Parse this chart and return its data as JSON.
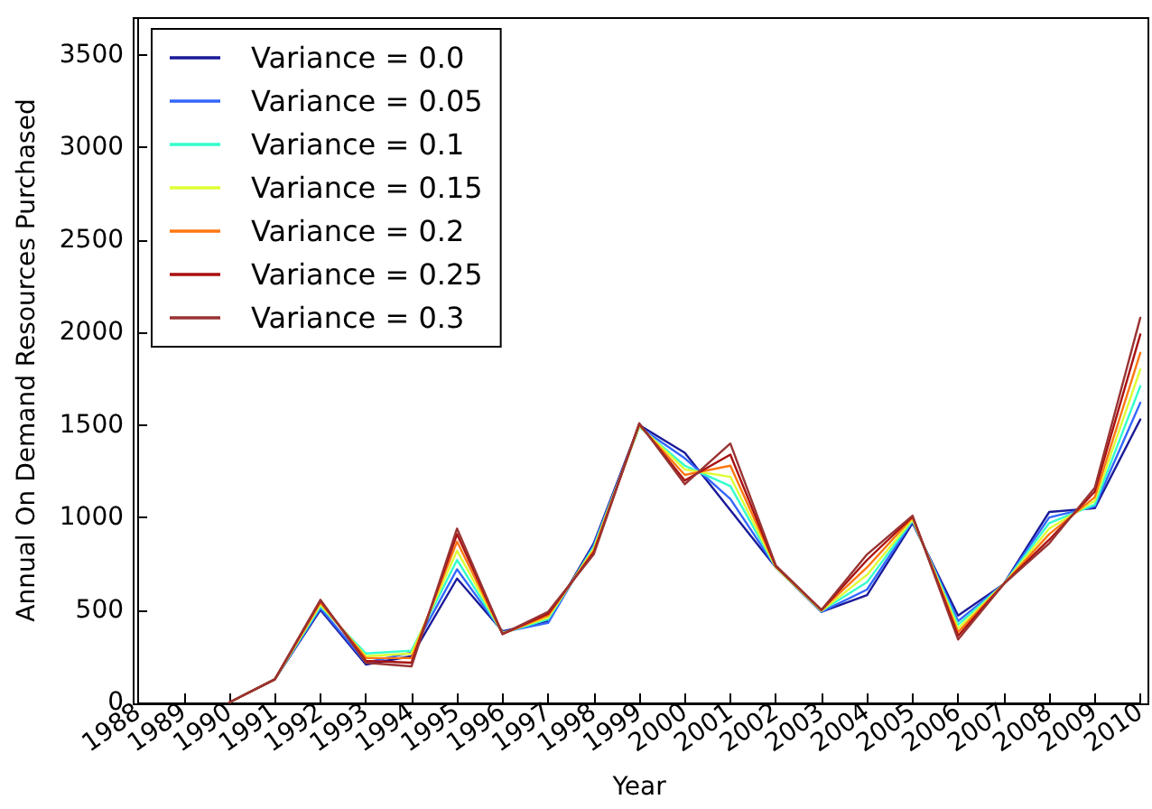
{
  "chart_data": {
    "type": "line",
    "xlabel": "Year",
    "ylabel": "Annual On Demand Resources Purchased",
    "x": [
      1990,
      1991,
      1992,
      1993,
      1994,
      1995,
      1996,
      1997,
      1998,
      1999,
      2000,
      2001,
      2002,
      2003,
      2004,
      2005,
      2006,
      2007,
      2008,
      2009,
      2010
    ],
    "series": [
      {
        "name": "Variance = 0.0",
        "color": "#1a1a99",
        "values": [
          0,
          125,
          500,
          205,
          250,
          670,
          385,
          440,
          860,
          1500,
          1350,
          1040,
          730,
          490,
          580,
          970,
          470,
          640,
          1030,
          1050,
          1530
        ]
      },
      {
        "name": "Variance = 0.05",
        "color": "#3366ff",
        "values": [
          0,
          125,
          510,
          215,
          270,
          720,
          380,
          430,
          850,
          1490,
          1320,
          1100,
          730,
          490,
          610,
          980,
          440,
          640,
          1000,
          1060,
          1620
        ]
      },
      {
        "name": "Variance = 0.1",
        "color": "#33ffcc",
        "values": [
          0,
          125,
          520,
          265,
          280,
          770,
          375,
          450,
          840,
          1490,
          1280,
          1170,
          730,
          495,
          650,
          985,
          420,
          640,
          970,
          1070,
          1710
        ]
      },
      {
        "name": "Variance = 0.15",
        "color": "#ddff33",
        "values": [
          0,
          125,
          530,
          250,
          265,
          820,
          375,
          460,
          830,
          1495,
          1260,
          1220,
          730,
          495,
          690,
          990,
          400,
          640,
          940,
          1090,
          1800
        ]
      },
      {
        "name": "Variance = 0.2",
        "color": "#ff7711",
        "values": [
          0,
          125,
          540,
          240,
          240,
          870,
          370,
          470,
          820,
          1500,
          1230,
          1280,
          735,
          500,
          730,
          1000,
          380,
          640,
          910,
          1110,
          1890
        ]
      },
      {
        "name": "Variance = 0.25",
        "color": "#aa1111",
        "values": [
          0,
          125,
          550,
          225,
          215,
          910,
          370,
          480,
          810,
          1505,
          1200,
          1340,
          735,
          500,
          770,
          1005,
          360,
          640,
          880,
          1140,
          1990
        ]
      },
      {
        "name": "Variance = 0.3",
        "color": "#993333",
        "values": [
          0,
          125,
          555,
          215,
          195,
          940,
          370,
          490,
          800,
          1510,
          1180,
          1400,
          740,
          500,
          800,
          1010,
          340,
          640,
          860,
          1160,
          2080
        ]
      }
    ],
    "xlim": [
      1988,
      2010
    ],
    "xticks": [
      1988,
      1989,
      1990,
      1991,
      1992,
      1993,
      1994,
      1995,
      1996,
      1997,
      1998,
      1999,
      2000,
      2001,
      2002,
      2003,
      2004,
      2005,
      2006,
      2007,
      2008,
      2009,
      2010
    ],
    "ylim": [
      0,
      3700
    ],
    "yticks": [
      0,
      500,
      1000,
      1500,
      2000,
      2500,
      3000,
      3500
    ],
    "grid": false,
    "legend": "top left",
    "marker": "none",
    "line_style": "solid"
  }
}
